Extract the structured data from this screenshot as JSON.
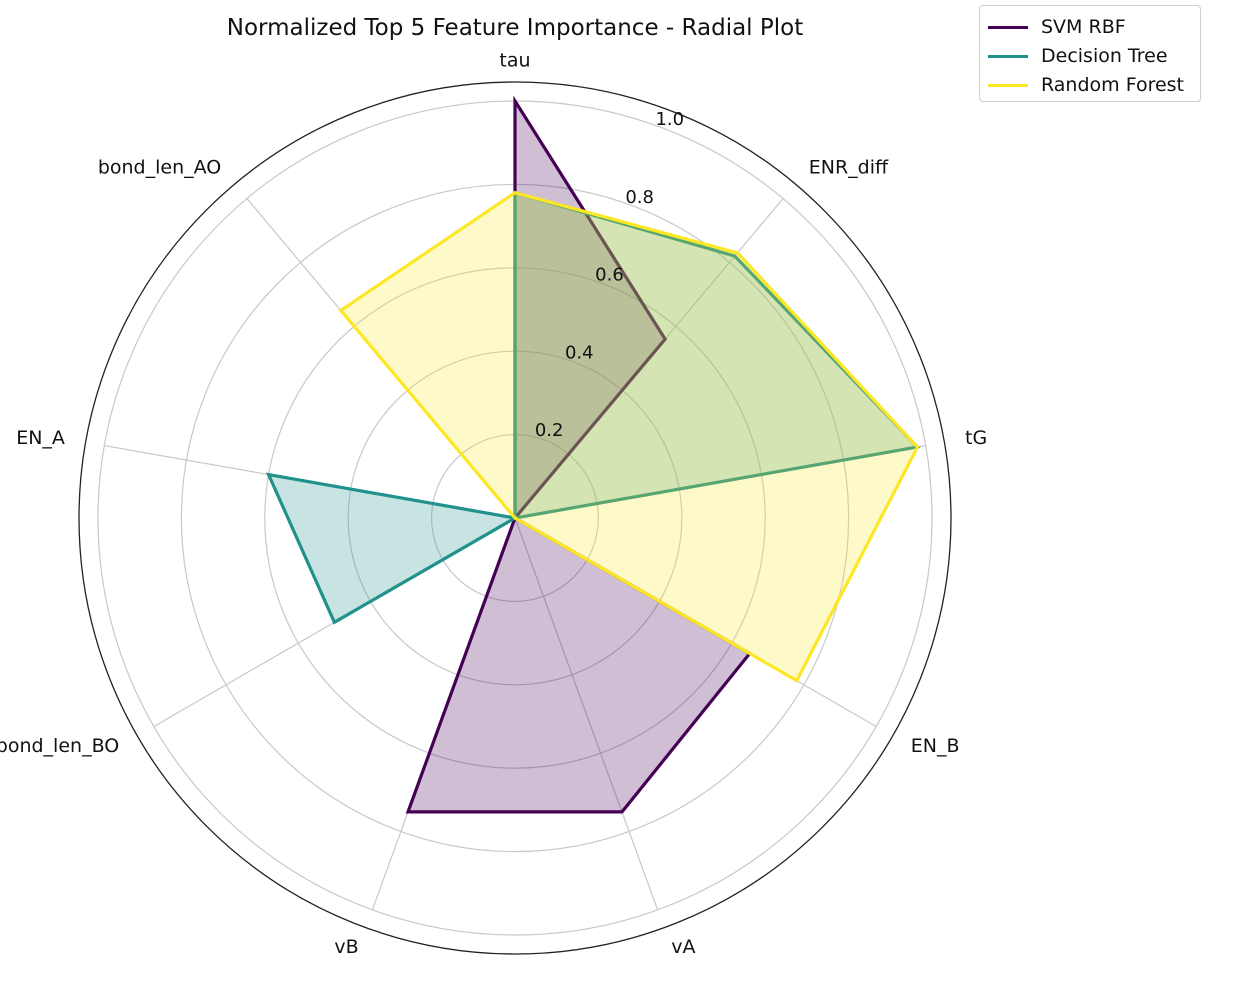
{
  "chart_data": {
    "type": "radar",
    "title": "Normalized Top 5 Feature Importance - Radial Plot",
    "categories": [
      "tau",
      "ENR_diff",
      "tG",
      "EN_B",
      "vA",
      "vB",
      "bond_len_BO",
      "EN_A",
      "bond_len_AO"
    ],
    "radial_ticks": [
      "0.2",
      "0.4",
      "0.6",
      "0.8",
      "1.0"
    ],
    "rlim": [
      0,
      1.0
    ],
    "grid": true,
    "legend_position": "top-right, outside plot",
    "series": [
      {
        "name": "SVM RBF",
        "color": "#440154",
        "fill_opacity": 0.25,
        "values": [
          1.0,
          0.56,
          0.0,
          0.65,
          0.75,
          0.75,
          0.0,
          0.0,
          0.0
        ]
      },
      {
        "name": "Decision Tree",
        "color": "#21918c",
        "fill_opacity": 0.25,
        "values": [
          0.78,
          0.82,
          0.98,
          0.0,
          0.0,
          0.0,
          0.5,
          0.6,
          0.0
        ]
      },
      {
        "name": "Random Forest",
        "color": "#fde725",
        "fill_opacity": 0.25,
        "values": [
          0.78,
          0.83,
          0.98,
          0.78,
          0.0,
          0.0,
          0.0,
          0.0,
          0.65
        ]
      }
    ]
  }
}
